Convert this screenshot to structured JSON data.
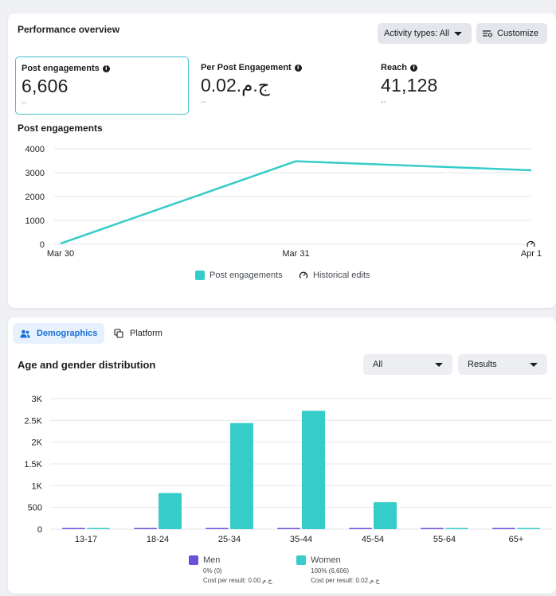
{
  "performance": {
    "title": "Performance overview",
    "activity_button": "Activity types: All",
    "customize_button": "Customize",
    "metrics": [
      {
        "label": "Post engagements",
        "value": "6,606",
        "delta": "--"
      },
      {
        "label": "Per Post Engagement",
        "value": "0.02ج.م.‏",
        "delta": "--"
      },
      {
        "label": "Reach",
        "value": "41,128",
        "delta": "--"
      }
    ],
    "chart_title": "Post engagements",
    "legend": {
      "series": "Post engagements",
      "edits": "Historical edits"
    }
  },
  "demographics": {
    "tabs": [
      "Demographics",
      "Platform"
    ],
    "title": "Age and gender distribution",
    "filter": "All",
    "metric_select": "Results",
    "legend": [
      {
        "name": "Men",
        "pct": "0% (0)",
        "cost": "Cost per result: 0.00ج.م.‏"
      },
      {
        "name": "Women",
        "pct": "100% (6,606)",
        "cost": "Cost per result: 0.02ج.م.‏"
      }
    ]
  },
  "colors": {
    "teal": "#36ccc9",
    "purple": "#6b4fd8",
    "grid": "#e4e6eb",
    "active_tab": "#1a6ed8"
  },
  "icons": {
    "info": "info-icon",
    "customize": "customize-icon",
    "demographics": "people-icon",
    "platform": "platform-icon",
    "historical": "historical-edits-icon"
  },
  "chart_data": [
    {
      "type": "line",
      "x": [
        "Mar 30",
        "Mar 31",
        "Apr 1"
      ],
      "series": [
        {
          "name": "Post engagements",
          "values": [
            30,
            3480,
            3100
          ]
        }
      ],
      "yticks": [
        "0",
        "1000",
        "2000",
        "3000",
        "4000"
      ],
      "ylim": [
        0,
        4000
      ],
      "grid": true,
      "legend": "bottom"
    },
    {
      "type": "bar",
      "categories": [
        "13-17",
        "18-24",
        "25-34",
        "35-44",
        "45-54",
        "55-64",
        "65+"
      ],
      "series": [
        {
          "name": "Men",
          "values": [
            0,
            0,
            0,
            0,
            0,
            0,
            0
          ]
        },
        {
          "name": "Women",
          "values": [
            0,
            830,
            2440,
            2720,
            620,
            0,
            0
          ]
        }
      ],
      "yticks": [
        "0",
        "500",
        "1K",
        "1.5K",
        "2K",
        "2.5K",
        "3K"
      ],
      "ylim": [
        0,
        3000
      ],
      "grid": true,
      "legend": "bottom"
    }
  ]
}
